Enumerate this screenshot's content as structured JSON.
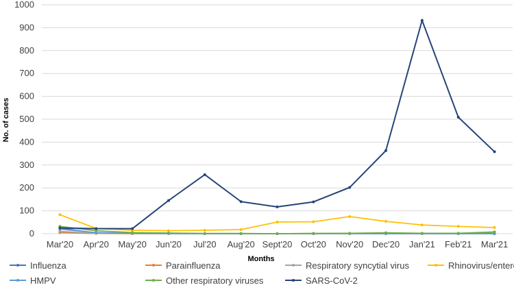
{
  "chart_data": {
    "type": "line",
    "title": "",
    "xlabel": "Months",
    "ylabel": "No. of cases",
    "ylim": [
      0,
      1000
    ],
    "yticks": [
      "0",
      "100",
      "200",
      "300",
      "400",
      "500",
      "600",
      "700",
      "800",
      "900",
      "1000"
    ],
    "grid": true,
    "legend_position": "bottom",
    "categories": [
      "Mar'20",
      "Apr'20",
      "May'20",
      "Jun'20",
      "Jul'20",
      "Aug'20",
      "Sept'20",
      "Oct'20",
      "Nov'20",
      "Dec'20",
      "Jan'21",
      "Feb'21",
      "Mar'21"
    ],
    "series": [
      {
        "name": "Influenza",
        "color": "#4472C4",
        "values": [
          25,
          2,
          1,
          1,
          0,
          0,
          0,
          0,
          0,
          0,
          0,
          0,
          0
        ]
      },
      {
        "name": "Parainfluenza",
        "color": "#ED7D31",
        "values": [
          5,
          1,
          0,
          0,
          0,
          0,
          0,
          1,
          1,
          2,
          1,
          1,
          2
        ]
      },
      {
        "name": "Respiratory syncytial virus",
        "color": "#A5A5A5",
        "values": [
          10,
          2,
          1,
          0,
          0,
          0,
          0,
          0,
          0,
          2,
          1,
          1,
          3
        ]
      },
      {
        "name": "Rhinovirus/enterovirus",
        "color": "#FFC000",
        "values": [
          83,
          23,
          15,
          13,
          15,
          18,
          51,
          52,
          75,
          54,
          38,
          32,
          27
        ]
      },
      {
        "name": "HMPV",
        "color": "#5B9BD5",
        "values": [
          20,
          5,
          2,
          1,
          0,
          0,
          0,
          0,
          1,
          1,
          1,
          1,
          1
        ]
      },
      {
        "name": "Other respiratory viruses",
        "color": "#70AD47",
        "values": [
          32,
          13,
          5,
          3,
          1,
          1,
          0,
          1,
          2,
          4,
          2,
          2,
          8
        ]
      },
      {
        "name": "SARS-CoV-2",
        "color": "#264478",
        "values": [
          25,
          22,
          22,
          145,
          258,
          140,
          117,
          139,
          202,
          363,
          932,
          509,
          358
        ]
      }
    ]
  }
}
